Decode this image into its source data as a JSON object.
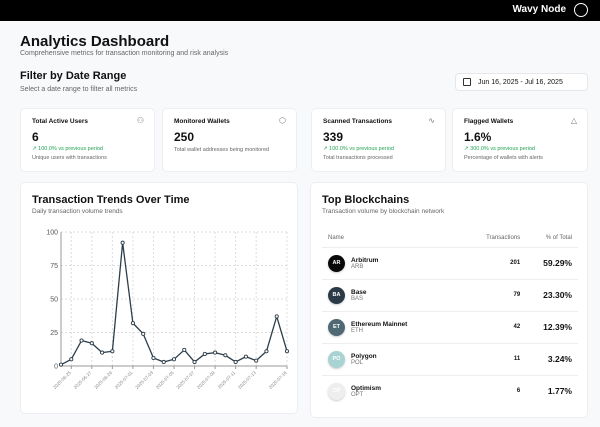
{
  "header": {
    "brand": "Wavy Node"
  },
  "page": {
    "title": "Analytics Dashboard",
    "subtitle": "Comprehensive metrics for transaction monitoring and risk analysis"
  },
  "filter": {
    "title": "Filter by Date Range",
    "subtitle": "Select a date range to filter all metrics",
    "date_range": "Jun 16, 2025 - Jul 16, 2025"
  },
  "kpis": [
    {
      "title": "Total Active Users",
      "value": "6",
      "change": "↗ 100.0% vs previous period",
      "desc": "Unique users with transactions",
      "icon": "users-icon"
    },
    {
      "title": "Monitored Wallets",
      "value": "250",
      "change": "",
      "desc": "Total wallet addresses being monitored",
      "icon": "shield-icon"
    },
    {
      "title": "Scanned Transactions",
      "value": "339",
      "change": "↗ 100.0% vs previous period",
      "desc": "Total transactions processed",
      "icon": "activity-icon"
    },
    {
      "title": "Flagged Wallets",
      "value": "1.6%",
      "change": "↗ 300.0% vs previous period",
      "desc": "Percentage of wallets with alerts",
      "icon": "alert-triangle-icon"
    }
  ],
  "trends": {
    "title": "Transaction Trends Over Time",
    "subtitle": "Daily transaction volume trends"
  },
  "chart_data": {
    "type": "line",
    "x": [
      "2025-06-24",
      "2025-06-25",
      "2025-06-26",
      "2025-06-27",
      "2025-06-28",
      "2025-06-29",
      "2025-06-30",
      "2025-07-01",
      "2025-07-02",
      "2025-07-03",
      "2025-07-04",
      "2025-07-05",
      "2025-07-06",
      "2025-07-07",
      "2025-07-08",
      "2025-07-09",
      "2025-07-10",
      "2025-07-11",
      "2025-07-12",
      "2025-07-13",
      "2025-07-14",
      "2025-07-15",
      "2025-07-16"
    ],
    "values": [
      1,
      5,
      19,
      17,
      10,
      11,
      92,
      32,
      24,
      6,
      3,
      5,
      12,
      3,
      9,
      10,
      8,
      3,
      7,
      4,
      11,
      37,
      11
    ],
    "x_ticks": [
      "2025-06-25",
      "2025-06-27",
      "2025-06-29",
      "2025-07-01",
      "2025-07-03",
      "2025-07-05",
      "2025-07-07",
      "2025-07-09",
      "2025-07-11",
      "2025-07-13",
      "2025-07-16"
    ],
    "y_ticks": [
      0,
      25,
      50,
      75,
      100
    ],
    "ylim": [
      0,
      100
    ],
    "grid": true,
    "color": "#2d3e4a"
  },
  "blockchains": {
    "title": "Top Blockchains",
    "subtitle": "Transaction volume by blockchain network",
    "columns": [
      "Name",
      "Transactions",
      "% of Total"
    ],
    "rows": [
      {
        "abbr": "AR",
        "name": "Arbitrum",
        "symbol": "ARB",
        "tx": "201",
        "pct": "59.29%",
        "color": "#0a0a0a"
      },
      {
        "abbr": "BA",
        "name": "Base",
        "symbol": "BAS",
        "tx": "79",
        "pct": "23.30%",
        "color": "#2a3b47"
      },
      {
        "abbr": "ET",
        "name": "Ethereum Mainnet",
        "symbol": "ETH",
        "tx": "42",
        "pct": "12.39%",
        "color": "#4f6874"
      },
      {
        "abbr": "PO",
        "name": "Polygon",
        "symbol": "POL",
        "tx": "11",
        "pct": "3.24%",
        "color": "#a9d3d3"
      },
      {
        "abbr": "OP",
        "name": "Optimism",
        "symbol": "OPT",
        "tx": "6",
        "pct": "1.77%",
        "color": "#eeeeee"
      }
    ]
  }
}
